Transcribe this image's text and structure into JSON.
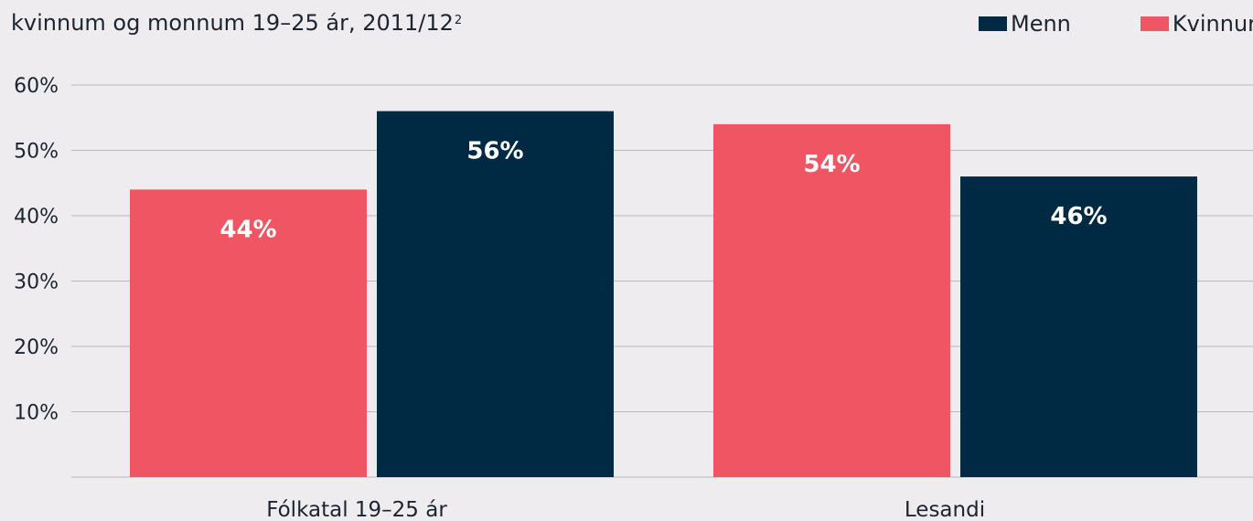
{
  "chart_data": {
    "type": "bar",
    "title": "kvinnum og monnum 19–25 ár, 2011/12",
    "title_superscript": "2",
    "categories": [
      "Fólkatal 19–25 ár",
      "Lesandi"
    ],
    "series": [
      {
        "name": "Kvinnur",
        "color": "#ef5563",
        "values": [
          44,
          54
        ],
        "labels": [
          "44%",
          "54%"
        ]
      },
      {
        "name": "Menn",
        "color": "#002a43",
        "values": [
          56,
          46
        ],
        "labels": [
          "56%",
          "46%"
        ]
      }
    ],
    "legend_order": [
      "Menn",
      "Kvinnur"
    ],
    "legend_placement": "top-right",
    "ylim": [
      0,
      60
    ],
    "yticks": [
      10,
      20,
      30,
      40,
      50,
      60
    ],
    "ytick_labels": [
      "10%",
      "20%",
      "30%",
      "40%",
      "50%",
      "60%"
    ],
    "grid": true,
    "grid_color": "#b9b7bb",
    "xlabel": "",
    "ylabel": ""
  }
}
